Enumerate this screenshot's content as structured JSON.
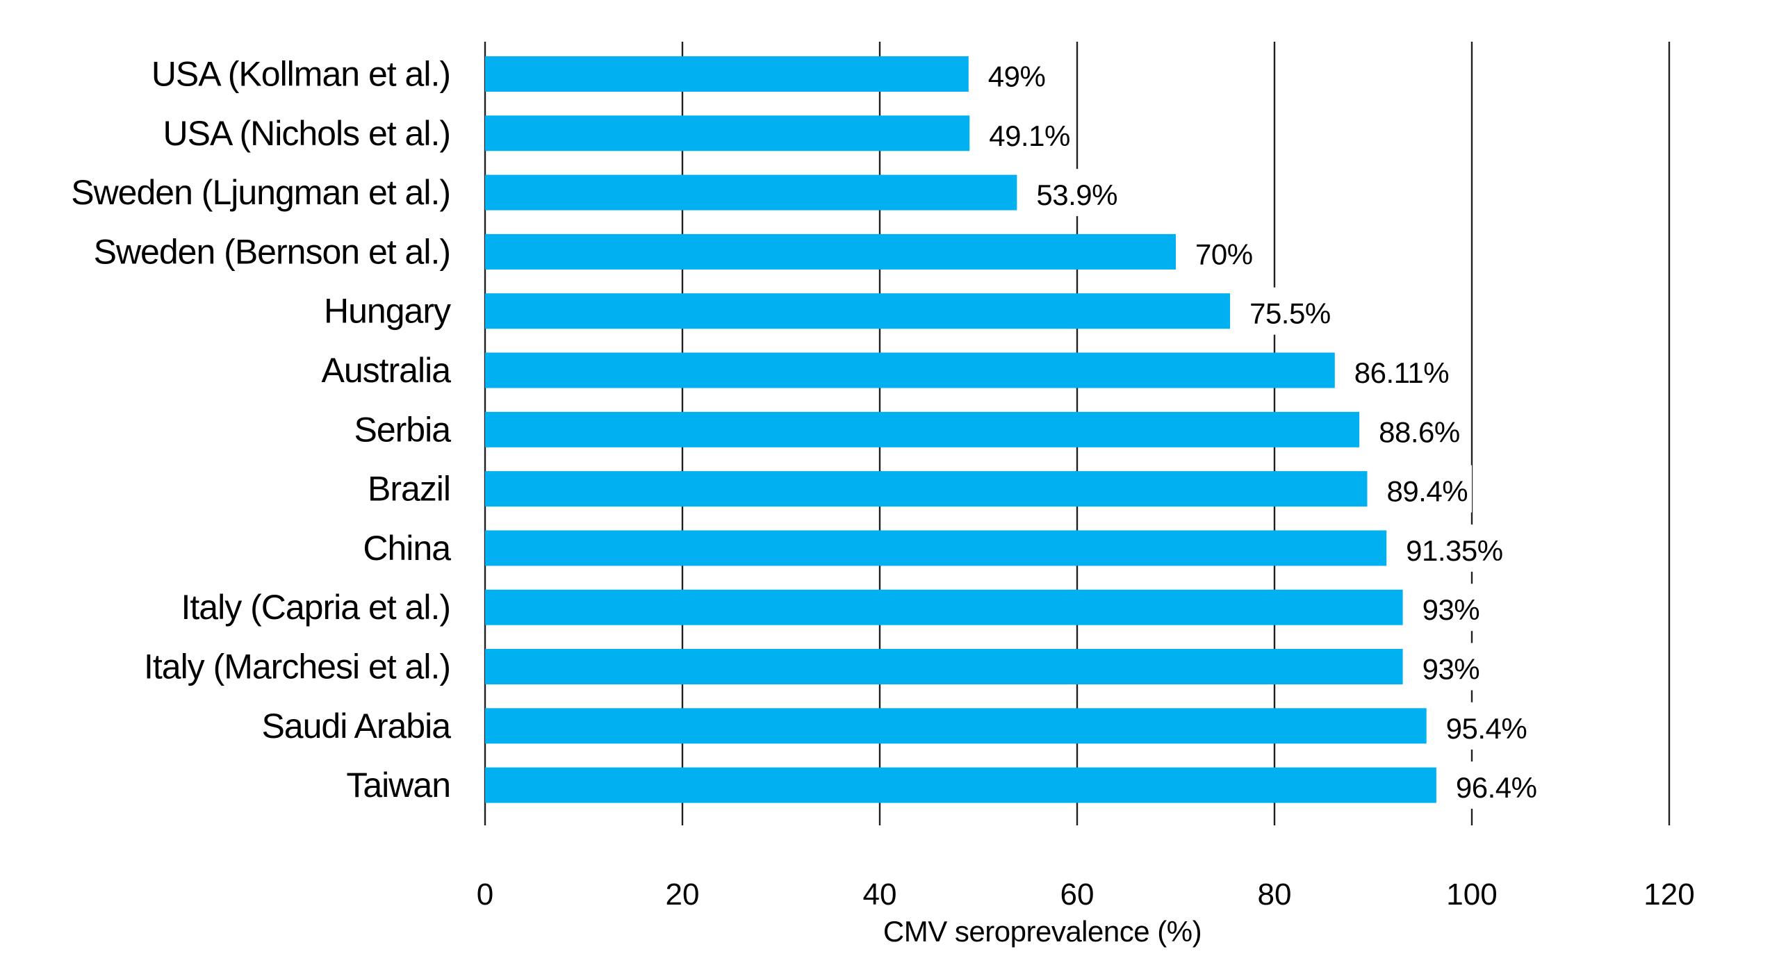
{
  "colors": {
    "bar": "#00b0f0",
    "gridline": "#231f20",
    "text": "#000000",
    "background": "#ffffff"
  },
  "chart_data": {
    "type": "bar",
    "orientation": "horizontal",
    "title": "",
    "xlabel": "CMV seroprevalence (%)",
    "ylabel": "",
    "xlim": [
      0,
      120
    ],
    "xticks": [
      0,
      20,
      40,
      60,
      80,
      100,
      120
    ],
    "xtick_labels": [
      "0",
      "20",
      "40",
      "60",
      "80",
      "100",
      "120"
    ],
    "grid": "vertical",
    "legend": "none",
    "categories": [
      "USA (Kollman et al.)",
      "USA (Nichols et al.)",
      "Sweden (Ljungman et al.)",
      "Sweden (Bernson et al.)",
      "Hungary",
      "Australia",
      "Serbia",
      "Brazil",
      "China",
      "Italy (Capria et al.)",
      "Italy (Marchesi et al.)",
      "Saudi Arabia",
      "Taiwan"
    ],
    "values": [
      49,
      49.1,
      53.9,
      70,
      75.5,
      86.11,
      88.6,
      89.4,
      91.35,
      93,
      93,
      95.4,
      96.4
    ],
    "data_labels": [
      "49%",
      "49.1%",
      "53.9%",
      "70%",
      "75.5%",
      "86.11%",
      "88.6%",
      "89.4%",
      "91.35%",
      "93%",
      "93%",
      "95.4%",
      "96.4%"
    ]
  }
}
